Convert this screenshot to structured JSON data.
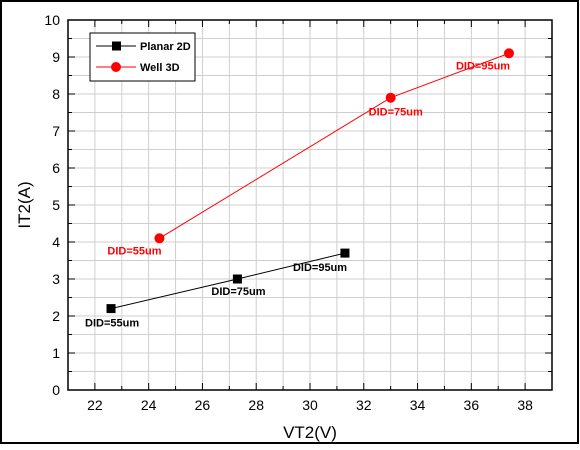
{
  "chart_data": {
    "type": "scatter",
    "xlabel": "VT2(V)",
    "ylabel": "IT2(A)",
    "xlim": [
      21,
      39
    ],
    "ylim": [
      0,
      10
    ],
    "x_ticks": [
      22,
      24,
      26,
      28,
      30,
      32,
      34,
      36,
      38
    ],
    "y_ticks": [
      0,
      1,
      2,
      3,
      4,
      5,
      6,
      7,
      8,
      9,
      10
    ],
    "grid": true,
    "legend_position": "top-left",
    "series": [
      {
        "name": "Planar 2D",
        "color": "#000000",
        "marker": "square",
        "connected": true,
        "points": [
          {
            "x": 22.6,
            "y": 2.2,
            "label": "DID=55um"
          },
          {
            "x": 27.3,
            "y": 3.0,
            "label": "DID=75um"
          },
          {
            "x": 31.3,
            "y": 3.7,
            "label": "DID=95um"
          }
        ]
      },
      {
        "name": "Well 3D",
        "color": "#ff0000",
        "marker": "circle",
        "connected": true,
        "points": [
          {
            "x": 24.4,
            "y": 4.1,
            "label": "DID=55um"
          },
          {
            "x": 33.0,
            "y": 7.9,
            "label": "DID=75um"
          },
          {
            "x": 37.4,
            "y": 9.1,
            "label": "DID=95um"
          }
        ]
      }
    ]
  }
}
